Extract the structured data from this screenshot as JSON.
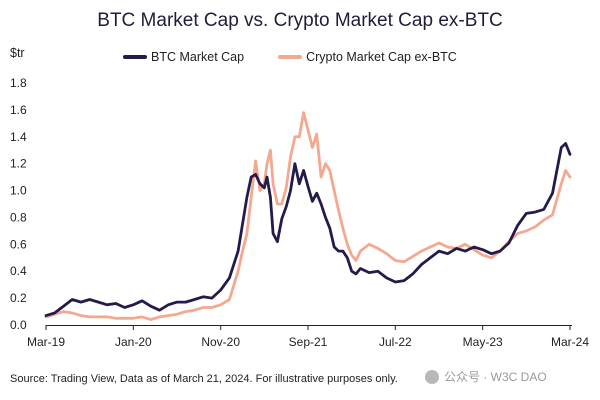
{
  "chart_data": {
    "type": "line",
    "title": "BTC Market Cap vs. Crypto Market Cap ex-BTC",
    "ylabel": "$tr",
    "xlabel": "",
    "ylim": [
      0,
      1.8
    ],
    "yticks": [
      "0.0",
      "0.2",
      "0.4",
      "0.6",
      "0.8",
      "1.0",
      "1.2",
      "1.4",
      "1.6",
      "1.8"
    ],
    "xticks": [
      "Mar-19",
      "Jan-20",
      "Nov-20",
      "Sep-21",
      "Jul-22",
      "May-23",
      "Mar-24"
    ],
    "grid": false,
    "legend": "top-center",
    "source": "Source: Trading View, Data as of March 21, 2024. For illustrative purposes only.",
    "series": [
      {
        "name": "BTC Market Cap",
        "color": "#241b4a",
        "points": [
          [
            0,
            0.07
          ],
          [
            1,
            0.09
          ],
          [
            2,
            0.14
          ],
          [
            3,
            0.19
          ],
          [
            4,
            0.17
          ],
          [
            5,
            0.19
          ],
          [
            6,
            0.17
          ],
          [
            7,
            0.15
          ],
          [
            8,
            0.16
          ],
          [
            9,
            0.13
          ],
          [
            10,
            0.15
          ],
          [
            11,
            0.18
          ],
          [
            12,
            0.14
          ],
          [
            13,
            0.11
          ],
          [
            14,
            0.15
          ],
          [
            15,
            0.17
          ],
          [
            16,
            0.17
          ],
          [
            17,
            0.19
          ],
          [
            18,
            0.21
          ],
          [
            19,
            0.2
          ],
          [
            20,
            0.26
          ],
          [
            21,
            0.35
          ],
          [
            22,
            0.55
          ],
          [
            22.5,
            0.75
          ],
          [
            23,
            0.95
          ],
          [
            23.5,
            1.1
          ],
          [
            24,
            1.12
          ],
          [
            24.5,
            1.05
          ],
          [
            25,
            1.02
          ],
          [
            25.3,
            1.1
          ],
          [
            25.7,
            0.95
          ],
          [
            26,
            0.68
          ],
          [
            26.5,
            0.62
          ],
          [
            27,
            0.79
          ],
          [
            27.5,
            0.88
          ],
          [
            28,
            1.0
          ],
          [
            28.5,
            1.2
          ],
          [
            29,
            1.05
          ],
          [
            29.5,
            1.15
          ],
          [
            30,
            1.03
          ],
          [
            30.5,
            0.92
          ],
          [
            31,
            0.98
          ],
          [
            31.5,
            0.9
          ],
          [
            32,
            0.8
          ],
          [
            32.5,
            0.72
          ],
          [
            33,
            0.58
          ],
          [
            33.5,
            0.55
          ],
          [
            34,
            0.55
          ],
          [
            34.5,
            0.5
          ],
          [
            35,
            0.4
          ],
          [
            35.5,
            0.38
          ],
          [
            36,
            0.42
          ],
          [
            37,
            0.39
          ],
          [
            38,
            0.4
          ],
          [
            39,
            0.35
          ],
          [
            40,
            0.32
          ],
          [
            41,
            0.33
          ],
          [
            42,
            0.38
          ],
          [
            43,
            0.45
          ],
          [
            44,
            0.5
          ],
          [
            45,
            0.55
          ],
          [
            46,
            0.53
          ],
          [
            47,
            0.57
          ],
          [
            48,
            0.55
          ],
          [
            49,
            0.58
          ],
          [
            50,
            0.56
          ],
          [
            51,
            0.53
          ],
          [
            52,
            0.55
          ],
          [
            53,
            0.61
          ],
          [
            54,
            0.74
          ],
          [
            55,
            0.83
          ],
          [
            56,
            0.84
          ],
          [
            57,
            0.86
          ],
          [
            58,
            0.98
          ],
          [
            59,
            1.32
          ],
          [
            59.5,
            1.35
          ],
          [
            60,
            1.27
          ]
        ]
      },
      {
        "name": "Crypto Market Cap ex-BTC",
        "color": "#f3a98f",
        "points": [
          [
            0,
            0.06
          ],
          [
            1,
            0.08
          ],
          [
            2,
            0.1
          ],
          [
            3,
            0.09
          ],
          [
            4,
            0.07
          ],
          [
            5,
            0.06
          ],
          [
            6,
            0.06
          ],
          [
            7,
            0.06
          ],
          [
            8,
            0.05
          ],
          [
            9,
            0.05
          ],
          [
            10,
            0.05
          ],
          [
            11,
            0.06
          ],
          [
            12,
            0.04
          ],
          [
            13,
            0.06
          ],
          [
            14,
            0.07
          ],
          [
            15,
            0.08
          ],
          [
            16,
            0.1
          ],
          [
            17,
            0.11
          ],
          [
            18,
            0.13
          ],
          [
            19,
            0.13
          ],
          [
            20,
            0.15
          ],
          [
            21,
            0.19
          ],
          [
            22,
            0.4
          ],
          [
            22.5,
            0.55
          ],
          [
            23,
            0.68
          ],
          [
            23.5,
            0.95
          ],
          [
            24,
            1.22
          ],
          [
            24.5,
            1.0
          ],
          [
            25,
            1.05
          ],
          [
            25.3,
            1.2
          ],
          [
            25.7,
            1.3
          ],
          [
            26,
            1.05
          ],
          [
            26.5,
            0.9
          ],
          [
            27,
            0.9
          ],
          [
            27.5,
            1.02
          ],
          [
            28,
            1.25
          ],
          [
            28.5,
            1.4
          ],
          [
            29,
            1.4
          ],
          [
            29.5,
            1.58
          ],
          [
            30,
            1.45
          ],
          [
            30.5,
            1.32
          ],
          [
            31,
            1.42
          ],
          [
            31.5,
            1.1
          ],
          [
            32,
            1.2
          ],
          [
            32.5,
            1.15
          ],
          [
            33,
            1.0
          ],
          [
            33.5,
            0.85
          ],
          [
            34,
            0.72
          ],
          [
            34.5,
            0.6
          ],
          [
            35,
            0.52
          ],
          [
            35.5,
            0.48
          ],
          [
            36,
            0.55
          ],
          [
            37,
            0.6
          ],
          [
            38,
            0.57
          ],
          [
            39,
            0.53
          ],
          [
            40,
            0.48
          ],
          [
            41,
            0.47
          ],
          [
            42,
            0.51
          ],
          [
            43,
            0.55
          ],
          [
            44,
            0.58
          ],
          [
            45,
            0.61
          ],
          [
            46,
            0.58
          ],
          [
            47,
            0.57
          ],
          [
            48,
            0.6
          ],
          [
            49,
            0.56
          ],
          [
            50,
            0.52
          ],
          [
            51,
            0.5
          ],
          [
            52,
            0.55
          ],
          [
            53,
            0.62
          ],
          [
            54,
            0.68
          ],
          [
            55,
            0.7
          ],
          [
            56,
            0.73
          ],
          [
            57,
            0.78
          ],
          [
            58,
            0.82
          ],
          [
            59,
            1.05
          ],
          [
            59.5,
            1.15
          ],
          [
            60,
            1.1
          ]
        ]
      }
    ]
  },
  "watermark": "公众号 · W3C DAO"
}
